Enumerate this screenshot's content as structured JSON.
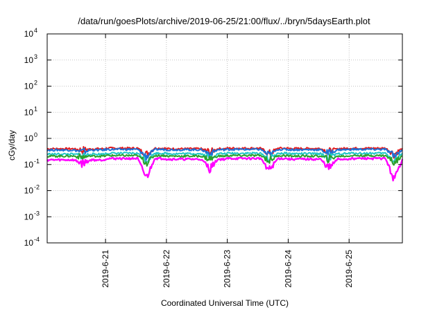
{
  "chart_data": {
    "type": "line",
    "title": "/data/run/goesPlots/archive/2019-06-25/21:00/flux/../bryn/5daysEarth.plot",
    "xlabel": "Coordinated Universal Time (UTC)",
    "ylabel": "cGy/day",
    "y_scale": "log",
    "ylim": [
      0.0001,
      10000
    ],
    "y_ticks": [
      {
        "base": "10",
        "exp": "-4",
        "value": 0.0001
      },
      {
        "base": "10",
        "exp": "-3",
        "value": 0.001
      },
      {
        "base": "10",
        "exp": "-2",
        "value": 0.01
      },
      {
        "base": "10",
        "exp": "-1",
        "value": 0.1
      },
      {
        "base": "10",
        "exp": "0",
        "value": 1
      },
      {
        "base": "10",
        "exp": "1",
        "value": 10
      },
      {
        "base": "10",
        "exp": "2",
        "value": 100
      },
      {
        "base": "10",
        "exp": "3",
        "value": 1000
      },
      {
        "base": "10",
        "exp": "4",
        "value": 10000
      }
    ],
    "xlim": [
      "2019-06-20 01:00",
      "2019-06-25 21:00"
    ],
    "x_ticks": [
      "2019-6-21",
      "2019-6-22",
      "2019-6-23",
      "2019-6-24",
      "2019-6-25"
    ],
    "grid": true,
    "legend": "none",
    "series": [
      {
        "color": "#e41a1c",
        "dips": [
          0.35,
          0.24,
          0.3,
          0.25,
          0.3,
          0.25
        ],
        "levels": [
          0.4,
          0.42,
          0.4,
          0.42,
          0.41,
          0.42
        ]
      },
      {
        "color": "#1f6fd6",
        "dips": [
          0.3,
          0.2,
          0.26,
          0.22,
          0.26,
          0.21
        ],
        "levels": [
          0.36,
          0.38,
          0.37,
          0.38,
          0.37,
          0.38
        ]
      },
      {
        "color": "#22c7c7",
        "dips": [
          0.22,
          0.14,
          0.18,
          0.16,
          0.18,
          0.14
        ],
        "levels": [
          0.25,
          0.27,
          0.26,
          0.27,
          0.26,
          0.27
        ]
      },
      {
        "color": "#2ca02c",
        "dips": [
          0.19,
          0.12,
          0.16,
          0.14,
          0.16,
          0.12
        ],
        "levels": [
          0.21,
          0.22,
          0.21,
          0.22,
          0.21,
          0.22
        ]
      },
      {
        "color": "#ff00ff",
        "dips": [
          0.11,
          0.03,
          0.07,
          0.06,
          0.07,
          0.025
        ],
        "levels": [
          0.15,
          0.17,
          0.16,
          0.17,
          0.16,
          0.17
        ]
      }
    ]
  }
}
